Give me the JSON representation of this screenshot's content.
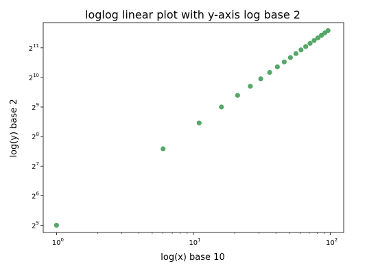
{
  "chart_data": {
    "type": "scatter",
    "title": "loglog linear plot with y-axis log base 2",
    "xlabel": "log(x) base 10",
    "ylabel": "log(y) base 2",
    "xscale": "log10",
    "yscale": "log2",
    "xlim": [
      0.8,
      125
    ],
    "ylim": [
      27,
      3700
    ],
    "grid": false,
    "x_ticks": [
      {
        "base": "10",
        "exp": "0",
        "value": 1
      },
      {
        "base": "10",
        "exp": "1",
        "value": 10
      },
      {
        "base": "10",
        "exp": "2",
        "value": 100
      }
    ],
    "y_ticks": [
      {
        "base": "2",
        "exp": "5",
        "value": 32
      },
      {
        "base": "2",
        "exp": "6",
        "value": 64
      },
      {
        "base": "2",
        "exp": "7",
        "value": 128
      },
      {
        "base": "2",
        "exp": "8",
        "value": 256
      },
      {
        "base": "2",
        "exp": "9",
        "value": 512
      },
      {
        "base": "2",
        "exp": "10",
        "value": 1024
      },
      {
        "base": "2",
        "exp": "11",
        "value": 2048
      }
    ],
    "marker_color": "#55a868",
    "x": [
      1,
      6,
      11,
      16,
      21,
      26,
      31,
      36,
      41,
      46,
      51,
      56,
      61,
      66,
      71,
      76,
      81,
      86,
      91,
      96
    ],
    "y": [
      32,
      192,
      352,
      512,
      672,
      832,
      992,
      1152,
      1312,
      1472,
      1632,
      1792,
      1952,
      2112,
      2272,
      2432,
      2592,
      2752,
      2912,
      3072
    ]
  }
}
